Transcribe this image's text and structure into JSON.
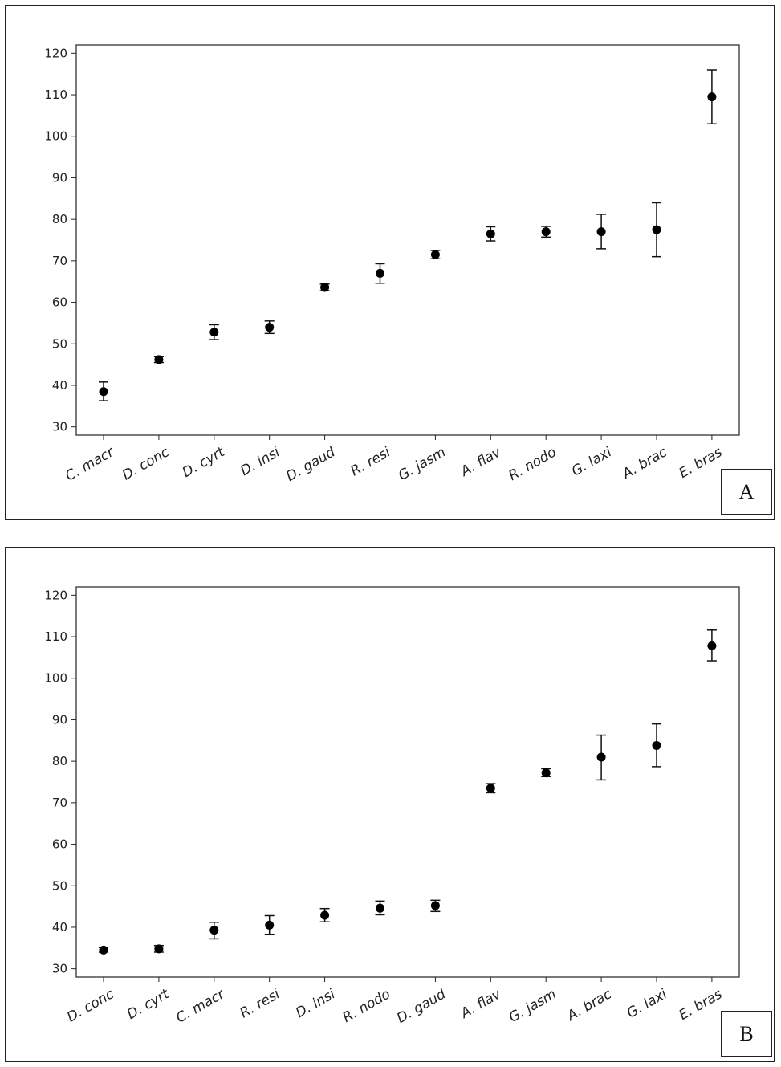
{
  "chart_data": [
    {
      "type": "scatter",
      "panel_label": "A",
      "title": "",
      "xlabel": "",
      "ylabel": "",
      "ylim": [
        28,
        122
      ],
      "yticks": [
        30,
        40,
        50,
        60,
        70,
        80,
        90,
        100,
        110,
        120
      ],
      "grid": false,
      "categories": [
        "C. macr",
        "D. conc",
        "D. cyrt",
        "D. insi",
        "D. gaud",
        "R. resi",
        "G. jasm",
        "A. flav",
        "R. nodo",
        "G. laxi",
        "A. brac",
        "E. bras"
      ],
      "values": [
        38.5,
        46.2,
        52.8,
        54.0,
        63.6,
        67.0,
        71.5,
        76.5,
        77.0,
        77.0,
        77.5,
        109.5
      ],
      "error_low": [
        36.3,
        45.5,
        51.0,
        52.5,
        62.8,
        64.6,
        70.5,
        74.8,
        75.7,
        72.9,
        71.0,
        103.0
      ],
      "error_high": [
        40.8,
        46.9,
        54.6,
        55.5,
        64.4,
        69.3,
        72.5,
        78.2,
        78.3,
        81.2,
        84.0,
        116.0
      ]
    },
    {
      "type": "scatter",
      "panel_label": "B",
      "title": "",
      "xlabel": "",
      "ylabel": "",
      "ylim": [
        28,
        122
      ],
      "yticks": [
        30,
        40,
        50,
        60,
        70,
        80,
        90,
        100,
        110,
        120
      ],
      "grid": false,
      "categories": [
        "D. conc",
        "D. cyrt",
        "C. macr",
        "R. resi",
        "D. insi",
        "R. nodo",
        "D. gaud",
        "A. flav",
        "G. jasm",
        "A. brac",
        "G. laxi",
        "E. bras"
      ],
      "values": [
        34.5,
        34.8,
        39.3,
        40.5,
        42.9,
        44.6,
        45.2,
        73.5,
        77.2,
        81.0,
        83.8,
        107.8
      ],
      "error_low": [
        34.0,
        34.0,
        37.2,
        38.3,
        41.3,
        43.0,
        43.8,
        72.4,
        76.3,
        75.5,
        78.7,
        104.2
      ],
      "error_high": [
        35.1,
        35.6,
        41.2,
        42.8,
        44.5,
        46.3,
        46.5,
        74.6,
        78.2,
        86.3,
        89.0,
        111.6
      ]
    }
  ]
}
